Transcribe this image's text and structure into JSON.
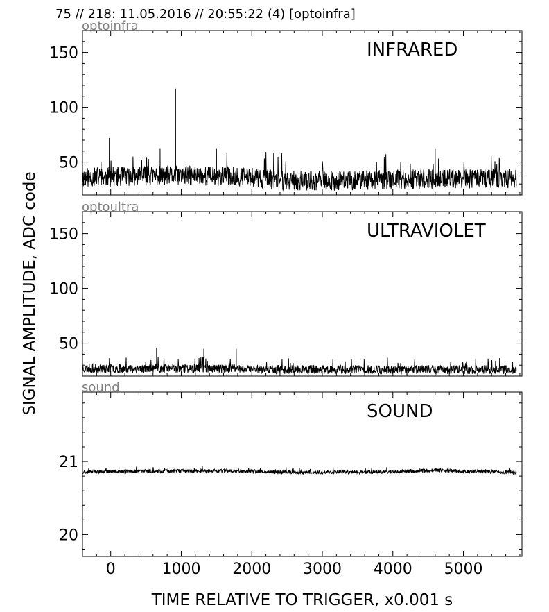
{
  "header": "75 // 218:   11.05.2016 // 20:55:22 (4)  [optoinfra]",
  "ylabel": "SIGNAL AMPLITUDE,  ADC code",
  "xlabel": "TIME RELATIVE TO TRIGGER,   x0.001 s",
  "chart_data": [
    {
      "type": "line",
      "channel": "optoinfra",
      "title": "INFRARED",
      "xlim": [
        -400,
        5830
      ],
      "ylim": [
        20,
        170
      ],
      "xticks": [
        0,
        1000,
        2000,
        3000,
        4000,
        5000
      ],
      "yticks": [
        50,
        100,
        150
      ],
      "ytick_labels": [
        "50",
        "100",
        "150"
      ],
      "seed": 11,
      "baseline": [
        [
          -400,
          36
        ],
        [
          1000,
          38
        ],
        [
          1800,
          37
        ],
        [
          2500,
          33
        ],
        [
          3200,
          33
        ],
        [
          4000,
          34
        ],
        [
          5000,
          35
        ],
        [
          5750,
          35
        ]
      ],
      "noise": 9,
      "spikes": [
        [
          -20,
          72
        ],
        [
          920,
          117
        ],
        [
          700,
          62
        ],
        [
          1500,
          62
        ],
        [
          4600,
          62
        ]
      ],
      "series": [
        {
          "values": []
        }
      ]
    },
    {
      "type": "line",
      "channel": "optoultra",
      "title": "ULTRAVIOLET",
      "xlim": [
        -400,
        5830
      ],
      "ylim": [
        20,
        170
      ],
      "xticks": [
        0,
        1000,
        2000,
        3000,
        4000,
        5000
      ],
      "yticks": [
        50,
        100,
        150
      ],
      "ytick_labels": [
        "50",
        "100",
        "150"
      ],
      "seed": 23,
      "baseline": [
        [
          -400,
          27
        ],
        [
          1800,
          27
        ],
        [
          2500,
          26
        ],
        [
          5750,
          26
        ]
      ],
      "noise": 4,
      "spikes": [
        [
          650,
          46
        ],
        [
          1320,
          45
        ],
        [
          1780,
          45
        ]
      ],
      "series": [
        {
          "values": []
        }
      ]
    },
    {
      "type": "line",
      "channel": "sound",
      "title": "SOUND",
      "xlim": [
        -400,
        5830
      ],
      "ylim": [
        19.7,
        21.95
      ],
      "xticks": [
        0,
        1000,
        2000,
        3000,
        4000,
        5000
      ],
      "yticks": [
        20,
        21
      ],
      "ytick_labels": [
        "20",
        "21"
      ],
      "seed": 37,
      "baseline": [
        [
          -400,
          20.86
        ],
        [
          900,
          20.87
        ],
        [
          1800,
          20.87
        ],
        [
          2800,
          20.85
        ],
        [
          4000,
          20.86
        ],
        [
          4600,
          20.88
        ],
        [
          5750,
          20.85
        ]
      ],
      "noise": 0.025,
      "spikes": [],
      "series": [
        {
          "values": []
        }
      ]
    }
  ]
}
